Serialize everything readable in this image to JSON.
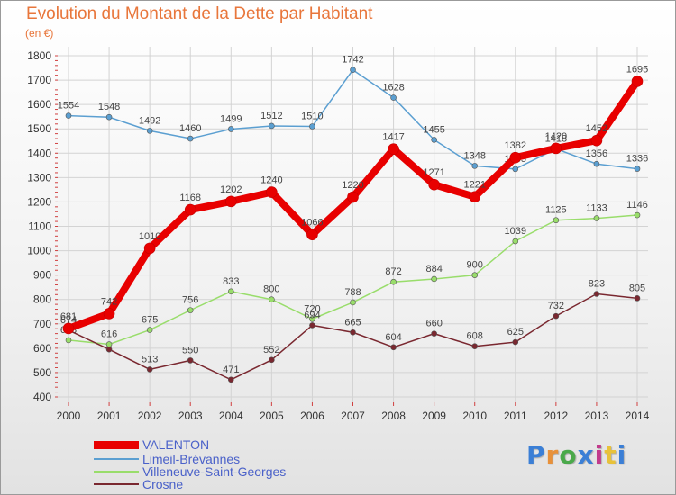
{
  "title": "Evolution du Montant de la Dette par Habitant",
  "subtitle": "(en €)",
  "brand": "Proxiti",
  "brand_colors": [
    "#3b7fd6",
    "#e8913a",
    "#4aa94b",
    "#3b7fd6",
    "#c23b8c",
    "#e8c23a",
    "#3b7fd6"
  ],
  "chart_data": {
    "type": "line",
    "x": [
      "2000",
      "2001",
      "2002",
      "2003",
      "2004",
      "2005",
      "2006",
      "2007",
      "2008",
      "2009",
      "2010",
      "2011",
      "2012",
      "2013",
      "2014"
    ],
    "ylim": [
      400,
      1800
    ],
    "yticks": [
      "400",
      "500",
      "600",
      "700",
      "800",
      "900",
      "1000",
      "1100",
      "1200",
      "1300",
      "1400",
      "1500",
      "1600",
      "1700",
      "1800"
    ],
    "grid": true,
    "legend_position": "bottom-left",
    "series": [
      {
        "name": "VALENTON",
        "color": "#e80000",
        "highlight": true,
        "values": [
          681,
          742,
          1010,
          1168,
          1202,
          1240,
          1066,
          1220,
          1417,
          1271,
          1221,
          1382,
          1420,
          1452,
          1695
        ],
        "labels": [
          "681",
          "742",
          "1010",
          "1168",
          "1202",
          "1240",
          "1066",
          "1220",
          "1417",
          "1271",
          "1221",
          "1382",
          "1420",
          "1452",
          "1695"
        ]
      },
      {
        "name": "Limeil-Brévannes",
        "color": "#5b9fd1",
        "highlight": false,
        "values": [
          1554,
          1548,
          1492,
          1460,
          1499,
          1512,
          1510,
          1742,
          1628,
          1455,
          1348,
          1335,
          1418,
          1356,
          1336
        ],
        "labels": [
          "1554",
          "1548",
          "1492",
          "1460",
          "1499",
          "1512",
          "1510",
          "1742",
          "1628",
          "1455",
          "1348",
          "1335",
          "1418",
          "1356",
          "1336"
        ]
      },
      {
        "name": "Villeneuve-Saint-Georges",
        "color": "#99dd6b",
        "highlight": false,
        "values": [
          633,
          616,
          675,
          756,
          833,
          800,
          720,
          788,
          872,
          884,
          900,
          1039,
          1125,
          1133,
          1146
        ],
        "labels": [
          "633",
          "616",
          "675",
          "756",
          "833",
          "800",
          "720",
          "788",
          "872",
          "884",
          "900",
          "1039",
          "1125",
          "1133",
          "1146"
        ]
      },
      {
        "name": "Crosne",
        "color": "#7a2830",
        "highlight": false,
        "values": [
          674,
          595,
          513,
          550,
          471,
          552,
          694,
          665,
          604,
          660,
          608,
          625,
          732,
          823,
          805
        ],
        "labels": [
          "674",
          "",
          "513",
          "550",
          "471",
          "552",
          "694",
          "665",
          "604",
          "660",
          "608",
          "625",
          "732",
          "823",
          "805"
        ]
      }
    ]
  }
}
